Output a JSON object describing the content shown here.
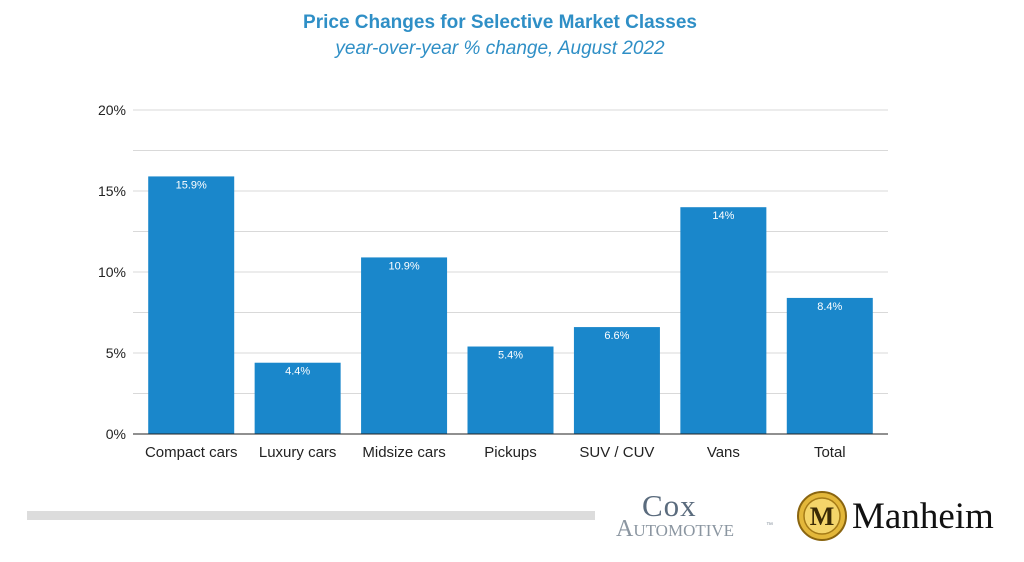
{
  "chart_data": {
    "type": "bar",
    "title": "Price Changes for Selective Market Classes",
    "subtitle": "year-over-year % change, August 2022",
    "categories": [
      "Compact cars",
      "Luxury cars",
      "Midsize cars",
      "Pickups",
      "SUV / CUV",
      "Vans",
      "Total"
    ],
    "values": [
      15.9,
      4.4,
      10.9,
      5.4,
      6.6,
      14,
      8.4
    ],
    "data_labels": [
      "15.9%",
      "4.4%",
      "10.9%",
      "5.4%",
      "6.6%",
      "14%",
      "8.4%"
    ],
    "ylim": [
      0,
      20
    ],
    "yticks": [
      0,
      5,
      10,
      15,
      20
    ],
    "ytick_labels": [
      "0%",
      "5%",
      "10%",
      "15%",
      "20%"
    ],
    "grid": true,
    "minor_grid_step": 2.5,
    "bar_color": "#1a87cb",
    "xlabel": "",
    "ylabel": ""
  },
  "branding": {
    "cox_word": "Cox",
    "automotive_word": "Automotive",
    "tm": "™",
    "manheim_word": "Manheim",
    "manheim_initial": "M"
  },
  "colors": {
    "title": "#2f8fc6",
    "grid": "#d9d9d9",
    "axis_text": "#222222",
    "gold": "#d6a727"
  }
}
